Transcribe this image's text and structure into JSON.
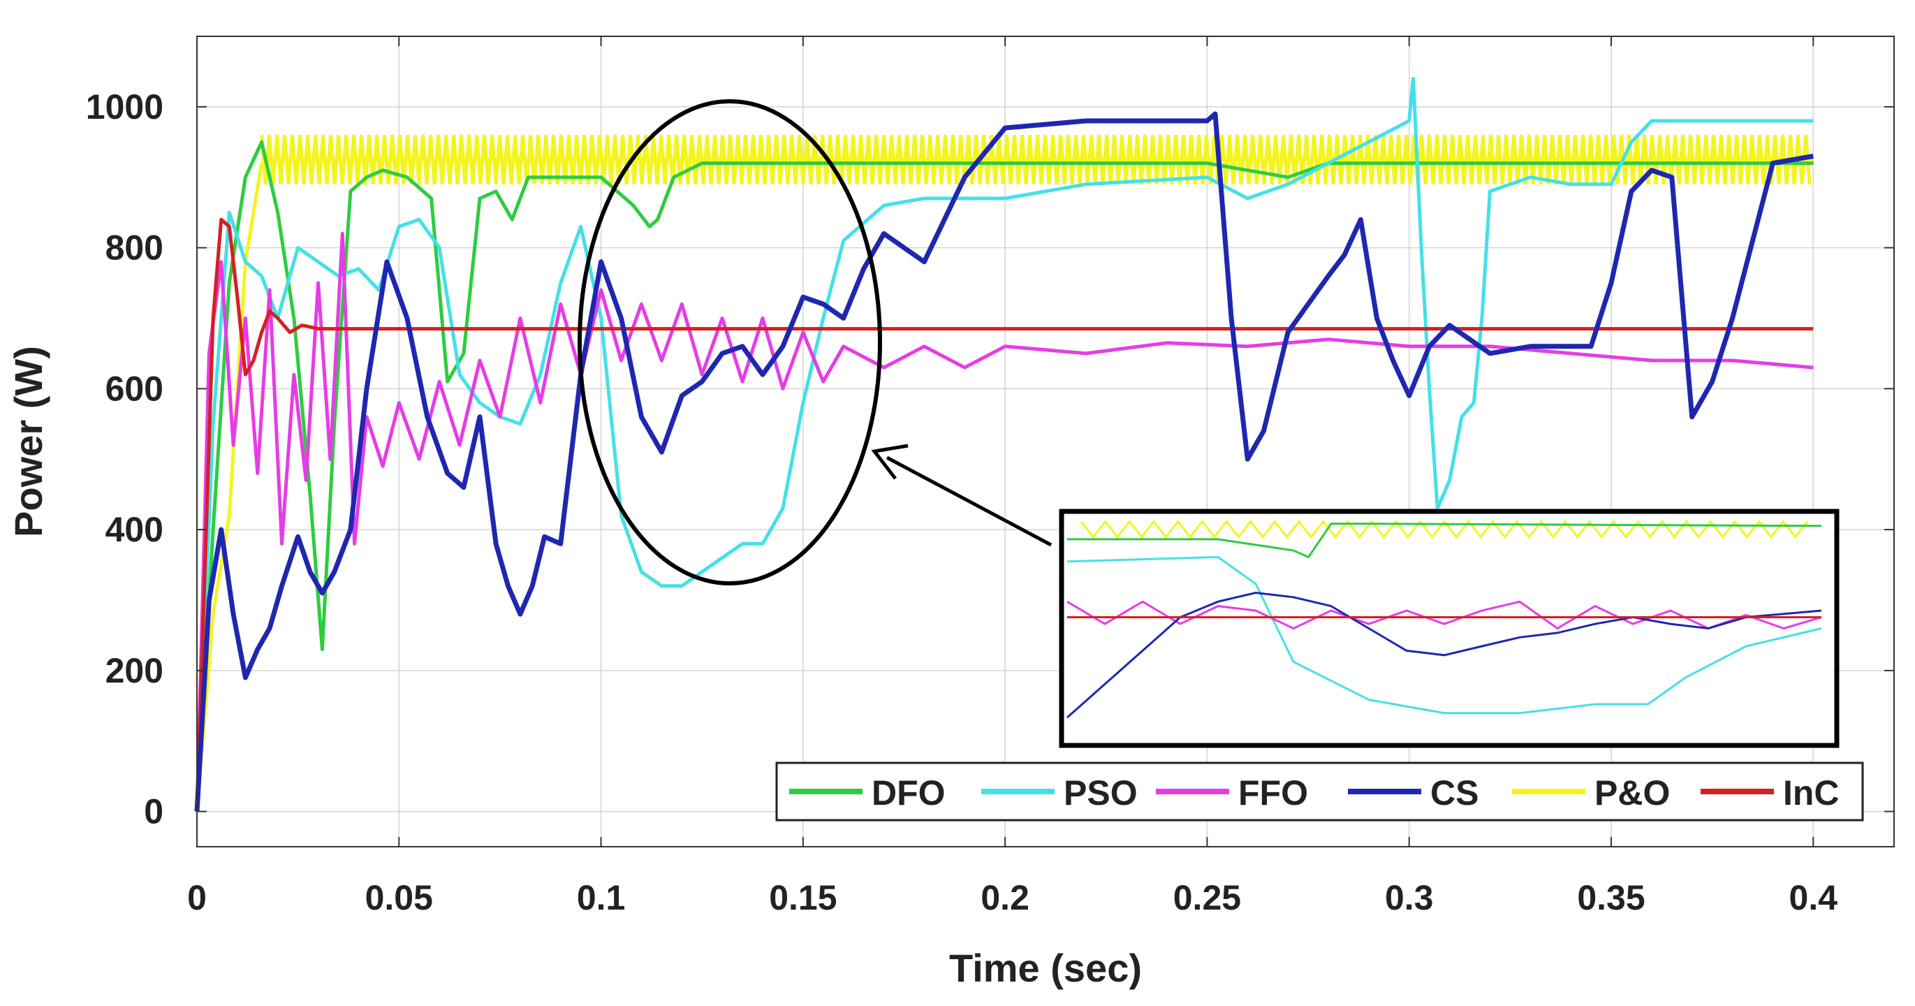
{
  "chart_data": {
    "type": "line",
    "title": "",
    "xlabel": "Time (sec)",
    "ylabel": "Power (W)",
    "xlim": [
      0,
      0.42
    ],
    "ylim": [
      -50,
      1100
    ],
    "xticks": [
      0,
      0.05,
      0.1,
      0.15,
      0.2,
      0.25,
      0.3,
      0.35,
      0.4
    ],
    "xtick_labels": [
      "0",
      "0.05",
      "0.1",
      "0.15",
      "0.2",
      "0.25",
      "0.3",
      "0.35",
      "0.4"
    ],
    "yticks": [
      0,
      200,
      400,
      600,
      800,
      1000
    ],
    "ytick_labels": [
      "0",
      "200",
      "400",
      "600",
      "800",
      "1000"
    ],
    "grid": true,
    "legend_position": "bottom-right",
    "series": [
      {
        "name": "DFO",
        "color": "#2ecc40",
        "x": [
          0,
          0.004,
          0.008,
          0.012,
          0.016,
          0.02,
          0.024,
          0.028,
          0.031,
          0.034,
          0.038,
          0.042,
          0.046,
          0.052,
          0.058,
          0.062,
          0.066,
          0.07,
          0.074,
          0.078,
          0.082,
          0.1,
          0.104,
          0.108,
          0.112,
          0.114,
          0.118,
          0.125,
          0.15,
          0.2,
          0.25,
          0.26,
          0.265,
          0.27,
          0.28,
          0.3,
          0.35,
          0.4
        ],
        "values": [
          0,
          400,
          750,
          900,
          950,
          850,
          700,
          450,
          230,
          550,
          880,
          900,
          910,
          900,
          870,
          610,
          650,
          870,
          880,
          840,
          900,
          900,
          880,
          860,
          830,
          840,
          900,
          920,
          920,
          920,
          920,
          910,
          905,
          900,
          920,
          920,
          920,
          920
        ]
      },
      {
        "name": "PSO",
        "color": "#44e0e8",
        "x": [
          0,
          0.004,
          0.008,
          0.012,
          0.016,
          0.02,
          0.025,
          0.03,
          0.035,
          0.04,
          0.045,
          0.05,
          0.055,
          0.06,
          0.065,
          0.07,
          0.075,
          0.08,
          0.085,
          0.09,
          0.095,
          0.1,
          0.105,
          0.11,
          0.115,
          0.12,
          0.125,
          0.13,
          0.135,
          0.14,
          0.145,
          0.15,
          0.155,
          0.16,
          0.17,
          0.18,
          0.2,
          0.22,
          0.25,
          0.26,
          0.27,
          0.3,
          0.301,
          0.303,
          0.305,
          0.307,
          0.31,
          0.313,
          0.316,
          0.318,
          0.32,
          0.33,
          0.34,
          0.35,
          0.355,
          0.36,
          0.4
        ],
        "values": [
          0,
          550,
          850,
          780,
          760,
          700,
          800,
          780,
          760,
          770,
          740,
          830,
          840,
          800,
          620,
          580,
          560,
          550,
          620,
          750,
          830,
          700,
          420,
          340,
          320,
          320,
          340,
          360,
          380,
          380,
          430,
          580,
          700,
          810,
          860,
          870,
          870,
          890,
          900,
          870,
          890,
          980,
          1040,
          800,
          600,
          430,
          470,
          560,
          580,
          700,
          880,
          900,
          890,
          890,
          950,
          980,
          980
        ]
      },
      {
        "name": "FFO",
        "color": "#e53de5",
        "x": [
          0,
          0.003,
          0.006,
          0.009,
          0.012,
          0.015,
          0.018,
          0.021,
          0.024,
          0.027,
          0.03,
          0.033,
          0.036,
          0.039,
          0.042,
          0.046,
          0.05,
          0.055,
          0.06,
          0.065,
          0.07,
          0.075,
          0.08,
          0.085,
          0.09,
          0.095,
          0.1,
          0.105,
          0.11,
          0.115,
          0.12,
          0.125,
          0.13,
          0.135,
          0.14,
          0.145,
          0.15,
          0.155,
          0.16,
          0.17,
          0.18,
          0.19,
          0.2,
          0.22,
          0.24,
          0.26,
          0.28,
          0.3,
          0.32,
          0.34,
          0.36,
          0.38,
          0.4
        ],
        "values": [
          0,
          650,
          780,
          520,
          700,
          480,
          740,
          380,
          620,
          470,
          750,
          500,
          820,
          380,
          560,
          490,
          580,
          500,
          610,
          520,
          640,
          560,
          700,
          580,
          720,
          620,
          740,
          640,
          720,
          640,
          720,
          620,
          700,
          610,
          700,
          600,
          680,
          610,
          660,
          630,
          660,
          630,
          660,
          650,
          665,
          660,
          670,
          660,
          660,
          650,
          640,
          640,
          630
        ]
      },
      {
        "name": "CS",
        "color": "#1f27b0",
        "x": [
          0,
          0.003,
          0.006,
          0.009,
          0.012,
          0.015,
          0.018,
          0.021,
          0.025,
          0.028,
          0.031,
          0.034,
          0.038,
          0.042,
          0.047,
          0.052,
          0.057,
          0.062,
          0.066,
          0.07,
          0.074,
          0.077,
          0.08,
          0.083,
          0.086,
          0.09,
          0.095,
          0.1,
          0.105,
          0.11,
          0.115,
          0.12,
          0.125,
          0.13,
          0.135,
          0.14,
          0.145,
          0.15,
          0.155,
          0.16,
          0.165,
          0.17,
          0.175,
          0.18,
          0.19,
          0.2,
          0.22,
          0.24,
          0.25,
          0.252,
          0.256,
          0.26,
          0.264,
          0.27,
          0.28,
          0.284,
          0.288,
          0.292,
          0.296,
          0.3,
          0.305,
          0.31,
          0.32,
          0.33,
          0.34,
          0.345,
          0.35,
          0.355,
          0.36,
          0.365,
          0.37,
          0.375,
          0.38,
          0.39,
          0.4
        ],
        "values": [
          0,
          300,
          400,
          280,
          190,
          230,
          260,
          320,
          390,
          340,
          310,
          340,
          400,
          600,
          780,
          700,
          560,
          480,
          460,
          560,
          380,
          320,
          280,
          320,
          390,
          380,
          620,
          780,
          700,
          560,
          510,
          590,
          610,
          650,
          660,
          620,
          660,
          730,
          720,
          700,
          770,
          820,
          800,
          780,
          900,
          970,
          980,
          980,
          980,
          990,
          700,
          500,
          540,
          680,
          760,
          790,
          840,
          700,
          640,
          590,
          660,
          690,
          650,
          660,
          660,
          660,
          750,
          880,
          910,
          900,
          560,
          610,
          700,
          920,
          930
        ]
      },
      {
        "name": "P&O",
        "color": "#f4f422",
        "x": [
          0,
          0.004,
          0.008,
          0.012,
          0.016,
          0.02,
          0.05,
          0.1,
          0.15,
          0.2,
          0.25,
          0.3,
          0.35,
          0.4
        ],
        "values": [
          0,
          280,
          420,
          780,
          920,
          925,
          925,
          925,
          925,
          925,
          925,
          925,
          925,
          925
        ],
        "band": [
          890,
          960
        ]
      },
      {
        "name": "InC",
        "color": "#d62020",
        "x": [
          0,
          0.002,
          0.004,
          0.006,
          0.008,
          0.01,
          0.012,
          0.014,
          0.016,
          0.018,
          0.02,
          0.023,
          0.026,
          0.03,
          0.035,
          0.04,
          0.1,
          0.2,
          0.3,
          0.4
        ],
        "values": [
          0,
          350,
          700,
          840,
          830,
          730,
          620,
          640,
          680,
          710,
          700,
          680,
          690,
          685,
          685,
          685,
          685,
          685,
          685,
          685
        ]
      }
    ],
    "inset": {
      "description": "zoom of circled region",
      "series": [
        {
          "name": "DFO",
          "color": "#2ecc40",
          "x": [
            0,
            0.2,
            0.3,
            0.32,
            0.35,
            0.4,
            1
          ],
          "values": [
            0.9,
            0.9,
            0.85,
            0.82,
            0.97,
            0.97,
            0.96
          ]
        },
        {
          "name": "PSO",
          "color": "#44e0e8",
          "x": [
            0,
            0.2,
            0.25,
            0.3,
            0.4,
            0.5,
            0.6,
            0.7,
            0.77,
            0.82,
            0.9,
            1
          ],
          "values": [
            0.8,
            0.82,
            0.7,
            0.35,
            0.18,
            0.12,
            0.12,
            0.16,
            0.16,
            0.28,
            0.42,
            0.5
          ]
        },
        {
          "name": "FFO",
          "color": "#e53de5",
          "x": [
            0,
            0.05,
            0.1,
            0.15,
            0.2,
            0.25,
            0.3,
            0.35,
            0.4,
            0.45,
            0.5,
            0.55,
            0.6,
            0.65,
            0.7,
            0.75,
            0.8,
            0.85,
            0.9,
            0.95,
            1
          ],
          "values": [
            0.62,
            0.52,
            0.62,
            0.52,
            0.6,
            0.58,
            0.5,
            0.58,
            0.52,
            0.58,
            0.52,
            0.58,
            0.62,
            0.5,
            0.6,
            0.52,
            0.58,
            0.5,
            0.56,
            0.5,
            0.55
          ]
        },
        {
          "name": "CS",
          "color": "#1f27b0",
          "x": [
            0,
            0.1,
            0.15,
            0.2,
            0.25,
            0.3,
            0.35,
            0.4,
            0.45,
            0.5,
            0.55,
            0.6,
            0.65,
            0.7,
            0.75,
            0.8,
            0.85,
            0.9,
            1
          ],
          "values": [
            0.1,
            0.4,
            0.55,
            0.62,
            0.66,
            0.64,
            0.6,
            0.5,
            0.4,
            0.38,
            0.42,
            0.46,
            0.48,
            0.52,
            0.55,
            0.52,
            0.5,
            0.55,
            0.58
          ]
        },
        {
          "name": "InC",
          "color": "#d62020",
          "x": [
            0,
            1
          ],
          "values": [
            0.55,
            0.55
          ]
        }
      ]
    }
  }
}
